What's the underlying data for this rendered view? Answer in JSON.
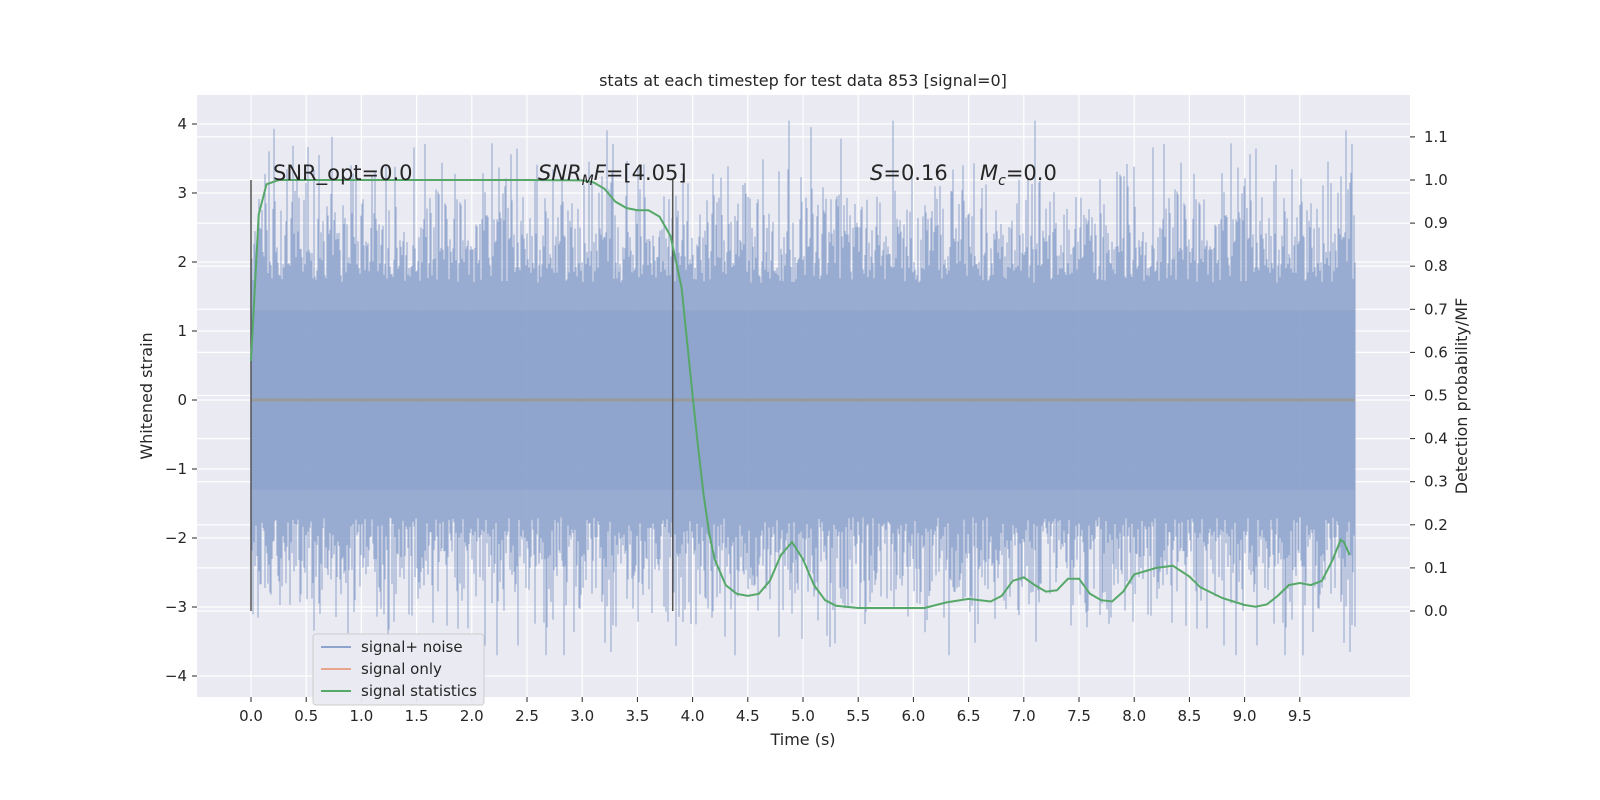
{
  "chart_data": {
    "type": "line",
    "title": "stats at each timestep for test data 853 [signal=0]",
    "xlabel": "Time (s)",
    "ylabel_left": "Whitened strain",
    "ylabel_right": "Detection probability/MF",
    "xlim": [
      -0.24,
      10.5
    ],
    "ylim_left": [
      -4.3,
      4.4
    ],
    "ylim_right": [
      -0.2,
      1.2
    ],
    "grid": true,
    "x_ticks": [
      "0.0",
      "0.5",
      "1.0",
      "1.5",
      "2.0",
      "2.5",
      "3.0",
      "3.5",
      "4.0",
      "4.5",
      "5.0",
      "5.5",
      "6.0",
      "6.5",
      "7.0",
      "7.5",
      "8.0",
      "8.5",
      "9.0",
      "9.5"
    ],
    "y_left_ticks": [
      "−4",
      "−3",
      "−2",
      "−1",
      "0",
      "1",
      "2",
      "3",
      "4"
    ],
    "y_right_ticks": [
      "0.0",
      "0.1",
      "0.2",
      "0.3",
      "0.4",
      "0.5",
      "0.6",
      "0.7",
      "0.8",
      "0.9",
      "1.0",
      "1.1"
    ],
    "annotations": {
      "snr_opt": "SNR_opt=0.0",
      "snr_mf_sym": "SNR",
      "snr_mf_sub": "M",
      "snr_mf_rest": "F",
      "snr_mf_value": "=[4.05]",
      "s_sym": "S",
      "s_value": "=0.16",
      "mc_sym": "M",
      "mc_sub": "c",
      "mc_value": "=0.0"
    },
    "vertical_markers_x": [
      0.0,
      3.82
    ],
    "series": [
      {
        "name": "signal+ noise",
        "color": "#8fa4cc",
        "description_range": [
          -3.7,
          4.05
        ],
        "x_start": 0.0,
        "x_end": 10.0
      },
      {
        "name": "signal only",
        "color": "#e8a58c",
        "values_constant": 0.0,
        "x_start": 0.0,
        "x_end": 10.0
      },
      {
        "name": "signal statistics",
        "color": "#55a868",
        "x": [
          0.0,
          0.07,
          0.14,
          0.25,
          0.5,
          1.0,
          1.5,
          2.0,
          2.5,
          3.0,
          3.1,
          3.2,
          3.3,
          3.4,
          3.5,
          3.6,
          3.7,
          3.8,
          3.9,
          4.0,
          4.05,
          4.1,
          4.15,
          4.2,
          4.3,
          4.4,
          4.5,
          4.6,
          4.7,
          4.8,
          4.9,
          5.0,
          5.1,
          5.2,
          5.3,
          5.5,
          5.8,
          6.1,
          6.3,
          6.5,
          6.7,
          6.8,
          6.9,
          7.0,
          7.1,
          7.2,
          7.3,
          7.4,
          7.5,
          7.6,
          7.7,
          7.8,
          7.9,
          8.0,
          8.2,
          8.35,
          8.5,
          8.6,
          8.8,
          9.0,
          9.1,
          9.2,
          9.3,
          9.4,
          9.5,
          9.6,
          9.7,
          9.8,
          9.87,
          9.9,
          9.95
        ],
        "values": [
          0.58,
          0.92,
          0.99,
          1.0,
          1.0,
          1.0,
          1.0,
          1.0,
          1.0,
          0.999,
          0.995,
          0.98,
          0.95,
          0.935,
          0.93,
          0.93,
          0.915,
          0.87,
          0.75,
          0.5,
          0.38,
          0.27,
          0.18,
          0.12,
          0.06,
          0.04,
          0.035,
          0.04,
          0.07,
          0.13,
          0.16,
          0.12,
          0.06,
          0.025,
          0.012,
          0.007,
          0.007,
          0.007,
          0.02,
          0.028,
          0.022,
          0.035,
          0.07,
          0.078,
          0.06,
          0.045,
          0.048,
          0.075,
          0.075,
          0.04,
          0.025,
          0.022,
          0.045,
          0.085,
          0.1,
          0.105,
          0.08,
          0.055,
          0.03,
          0.014,
          0.01,
          0.015,
          0.035,
          0.06,
          0.065,
          0.06,
          0.07,
          0.12,
          0.165,
          0.16,
          0.13
        ]
      }
    ],
    "legend": {
      "placement": "lower-left",
      "entries": [
        "signal+ noise",
        "signal only",
        "signal statistics"
      ]
    },
    "colors": {
      "plot_bg": "#eaeaf2",
      "grid": "#ffffff",
      "marker": "#555555",
      "zero_line": "#9a9a9a"
    }
  }
}
